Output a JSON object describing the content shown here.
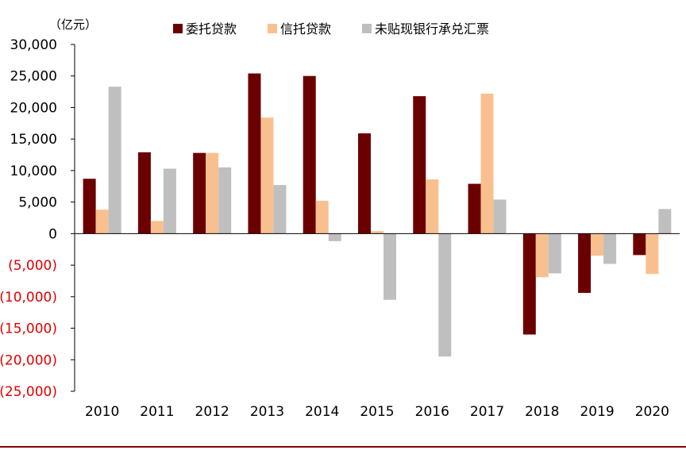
{
  "chart_data": {
    "type": "bar",
    "unit_label": "（亿元）",
    "title": "",
    "xlabel": "",
    "ylabel": "",
    "ylim": [
      -25000,
      30000
    ],
    "yticks": [
      30000,
      25000,
      20000,
      15000,
      10000,
      5000,
      0,
      -5000,
      -10000,
      -15000,
      -20000,
      -25000
    ],
    "ytick_labels": [
      "30,000",
      "25,000",
      "20,000",
      "15,000",
      "10,000",
      "5,000",
      "0",
      "(5,000)",
      "(10,000)",
      "(15,000)",
      "(20,000)",
      "(25,000)"
    ],
    "categories": [
      "2010",
      "2011",
      "2012",
      "2013",
      "2014",
      "2015",
      "2016",
      "2017",
      "2018",
      "2019",
      "2020"
    ],
    "series": [
      {
        "name": "委托贷款",
        "color": "#6b0000",
        "values": [
          8700,
          12900,
          12800,
          25400,
          25000,
          15900,
          21800,
          7900,
          -16000,
          -9400,
          -3400
        ]
      },
      {
        "name": "信托贷款",
        "color": "#f9c08f",
        "values": [
          3800,
          2000,
          12800,
          18400,
          5200,
          400,
          8600,
          22200,
          -6900,
          -3500,
          -6400
        ]
      },
      {
        "name": "未贴现银行承兑汇票",
        "color": "#bfbfbf",
        "values": [
          23300,
          10300,
          10500,
          7700,
          -1200,
          -10500,
          -19500,
          5400,
          -6300,
          -4800,
          3900
        ]
      }
    ],
    "grid": false,
    "legend_position": "top"
  }
}
